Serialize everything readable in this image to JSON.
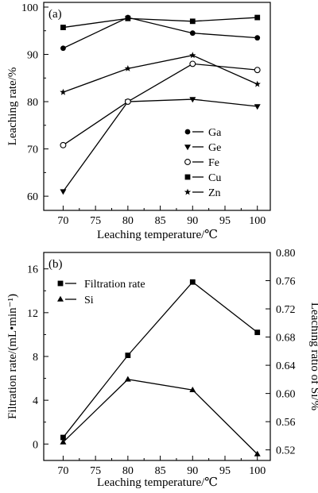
{
  "chart_data": [
    {
      "type": "line",
      "panel_label": "(a)",
      "xlabel": "Leaching temperature/℃",
      "ylabel": "Leaching rate/%",
      "xlim": [
        67,
        102
      ],
      "ylim": [
        57,
        101
      ],
      "xticks": [
        70,
        75,
        80,
        85,
        90,
        95,
        100
      ],
      "yticks": [
        60,
        70,
        80,
        90,
        100
      ],
      "legend_placement": "lower-right",
      "x": [
        70,
        80,
        90,
        100
      ],
      "series": [
        {
          "name": "Ga",
          "marker": "filled-circle",
          "values": [
            91.3,
            97.8,
            94.5,
            93.5
          ]
        },
        {
          "name": "Ge",
          "marker": "filled-down-triangle",
          "values": [
            61.0,
            80.0,
            80.5,
            79.0
          ]
        },
        {
          "name": "Fe",
          "marker": "open-circle",
          "values": [
            70.8,
            80.0,
            88.0,
            86.7
          ]
        },
        {
          "name": "Cu",
          "marker": "filled-square",
          "values": [
            95.7,
            97.6,
            97.0,
            97.8
          ]
        },
        {
          "name": "Zn",
          "marker": "star",
          "values": [
            82.0,
            87.0,
            89.8,
            83.7
          ]
        }
      ]
    },
    {
      "type": "line",
      "panel_label": "(b)",
      "xlabel": "Leaching temperature/℃",
      "ylabel": "Filtration rate/(mL•min⁻¹)",
      "y2label": "Leaching ratio of Si/%",
      "xlim": [
        67,
        102
      ],
      "ylim": [
        -1.5,
        17.5
      ],
      "y2lim": [
        0.505,
        0.8
      ],
      "xticks": [
        70,
        75,
        80,
        85,
        90,
        95,
        100
      ],
      "yticks": [
        0,
        4,
        8,
        12,
        16
      ],
      "y2ticks": [
        "0.52",
        "0.56",
        "0.60",
        "0.64",
        "0.68",
        "0.72",
        "0.76",
        "0.80"
      ],
      "legend_placement": "top-left",
      "x": [
        70,
        80,
        90,
        100
      ],
      "series": [
        {
          "name": "Filtration rate",
          "marker": "filled-square",
          "axis": "left",
          "values": [
            0.6,
            8.1,
            14.8,
            10.2
          ]
        },
        {
          "name": "Si",
          "marker": "filled-up-triangle",
          "axis": "right",
          "values": [
            0.531,
            0.62,
            0.605,
            0.514
          ]
        }
      ]
    }
  ]
}
